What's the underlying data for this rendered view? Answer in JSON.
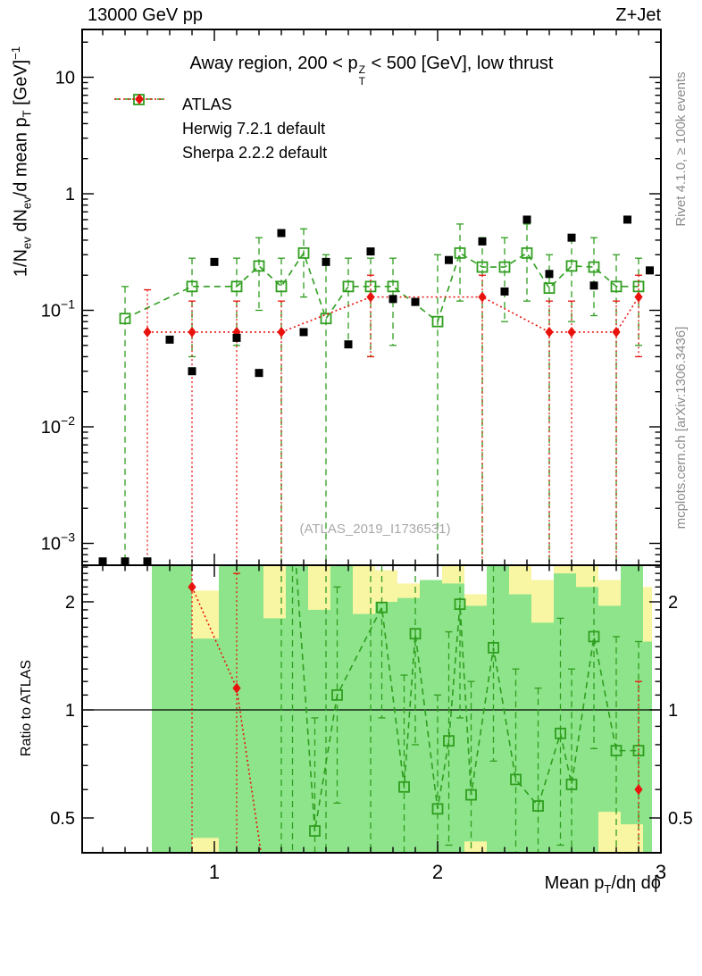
{
  "header": {
    "beam": "13000 GeV pp",
    "process": "Z+Jet"
  },
  "title": {
    "pre": "Away region, 200 < p",
    "sup": "Z",
    "sub": "T",
    "post": " < 500 [GeV], low thrust"
  },
  "legend": [
    {
      "label": "ATLAS",
      "marker": "filled-square",
      "color": "#000000",
      "line": "none"
    },
    {
      "label": "Herwig 7.2.1 default",
      "marker": "open-square",
      "color": "#2f9e1f",
      "line": "dashed"
    },
    {
      "label": "Sherpa 2.2.2 default",
      "marker": "filled-diamond",
      "color": "#e8130d",
      "line": "dotted"
    }
  ],
  "labels": {
    "y_main": {
      "a": "1/N",
      "b": "ev",
      "c": " dN",
      "d": "ev",
      "e": "/d mean p",
      "f": "T",
      "g": " [GeV]",
      "h": "−1"
    },
    "y_ratio": "Ratio to ATLAS",
    "x": {
      "a": "Mean p",
      "b": "T",
      "c": "/dη dϕ"
    }
  },
  "side_notes": {
    "top_right": "Rivet 4.1.0, ≥ 100k events",
    "bottom_right": "mcplots.cern.ch [arXiv:1306.3436]"
  },
  "watermark": "(ATLAS_2019_I1736531)",
  "colors": {
    "atlas": "#000000",
    "herwig": "#2f9e1f",
    "sherpa": "#e8130d",
    "band_yellow": "#f9f6a3",
    "band_green": "#8ee48a",
    "frame": "#000000",
    "note_gray": "#8c8c8c",
    "watermark_gray": "#a9a9a9"
  },
  "chart_data": [
    {
      "type": "scatter",
      "title": "Away region, 200 < pT(Z) < 500 [GeV], low thrust",
      "xlabel": "Mean pT/dη dϕ",
      "ylabel": "1/Nev dNev/d mean pT [GeV]^-1",
      "x_range": [
        0.41,
        3.0
      ],
      "y_range": [
        0.00065,
        26
      ],
      "y_scale": "log",
      "grid": false,
      "legend_position": "top-left",
      "x_ticks": [
        {
          "v": 1,
          "t": "1"
        },
        {
          "v": 2,
          "t": "2"
        },
        {
          "v": 3,
          "t": "3"
        }
      ],
      "y_ticks": [
        {
          "v": 10,
          "b": "10",
          "e": ""
        },
        {
          "v": 1,
          "b": "1",
          "e": ""
        },
        {
          "v": 0.1,
          "b": "10",
          "e": "−1"
        },
        {
          "v": 0.01,
          "b": "10",
          "e": "−2"
        },
        {
          "v": 0.001,
          "b": "10",
          "e": "−3"
        }
      ],
      "series": [
        {
          "name": "Herwig 7.2.1 default",
          "marker": "open-square",
          "line": "dashed",
          "color": "#2f9e1f",
          "points": [
            [
              0.6,
              0.085,
              null,
              0.16
            ],
            [
              0.9,
              0.16,
              0.04,
              0.28
            ],
            [
              1.1,
              0.16,
              0.05,
              0.28
            ],
            [
              1.2,
              0.24,
              0.1,
              0.42
            ],
            [
              1.3,
              0.16,
              null,
              0.28
            ],
            [
              1.4,
              0.31,
              0.13,
              0.5
            ],
            [
              1.5,
              0.085,
              null,
              0.3
            ],
            [
              1.6,
              0.16,
              0.05,
              0.28
            ],
            [
              1.7,
              0.16,
              0.04,
              0.28
            ],
            [
              1.8,
              0.16,
              0.05,
              0.28
            ],
            [
              2.0,
              0.08,
              null,
              0.3
            ],
            [
              2.1,
              0.31,
              0.12,
              0.55
            ],
            [
              2.2,
              0.235,
              null,
              0.42
            ],
            [
              2.3,
              0.235,
              0.08,
              0.42
            ],
            [
              2.4,
              0.31,
              0.12,
              0.55
            ],
            [
              2.5,
              0.155,
              null,
              0.3
            ],
            [
              2.6,
              0.24,
              0.08,
              0.42
            ],
            [
              2.7,
              0.235,
              0.09,
              0.42
            ],
            [
              2.8,
              0.16,
              null,
              0.3
            ],
            [
              2.9,
              0.16,
              0.05,
              0.28
            ]
          ]
        },
        {
          "name": "Sherpa 2.2.2 default",
          "marker": "filled-diamond",
          "line": "dotted",
          "color": "#e8130d",
          "points": [
            [
              0.7,
              0.065,
              null,
              0.15
            ],
            [
              0.9,
              0.065,
              null,
              0.12
            ],
            [
              1.1,
              0.065,
              null,
              0.12
            ],
            [
              1.3,
              0.065,
              null,
              0.12
            ],
            [
              1.7,
              0.13,
              0.04,
              0.2
            ],
            [
              2.2,
              0.13,
              null,
              0.2
            ],
            [
              2.5,
              0.065,
              null,
              0.12
            ],
            [
              2.6,
              0.065,
              null,
              0.12
            ],
            [
              2.8,
              0.065,
              null,
              0.12
            ],
            [
              2.9,
              0.13,
              0.04,
              0.2
            ]
          ]
        },
        {
          "name": "ATLAS",
          "marker": "filled-square",
          "line": "none",
          "color": "#000000",
          "points": [
            [
              0.5,
              0.0007
            ],
            [
              0.6,
              0.0007
            ],
            [
              0.7,
              0.0007
            ],
            [
              0.8,
              0.056
            ],
            [
              0.9,
              0.03
            ],
            [
              1.0,
              0.26
            ],
            [
              1.1,
              0.058
            ],
            [
              1.2,
              0.029
            ],
            [
              1.3,
              0.46
            ],
            [
              1.4,
              0.065
            ],
            [
              1.5,
              0.26
            ],
            [
              1.6,
              0.051
            ],
            [
              1.7,
              0.32
            ],
            [
              1.8,
              0.125
            ],
            [
              1.9,
              0.118
            ],
            [
              2.05,
              0.27
            ],
            [
              2.2,
              0.39
            ],
            [
              2.3,
              0.145
            ],
            [
              2.4,
              0.6
            ],
            [
              2.5,
              0.205
            ],
            [
              2.6,
              0.42
            ],
            [
              2.7,
              0.163
            ],
            [
              2.85,
              0.6
            ],
            [
              2.95,
              0.22
            ]
          ]
        }
      ]
    },
    {
      "type": "scatter",
      "title": "Ratio to ATLAS",
      "y_scale": "log",
      "x_range": [
        0.41,
        3.0
      ],
      "y_range": [
        0.4,
        2.53
      ],
      "reference_line": 1,
      "y_ticks": [
        {
          "v": 2,
          "t": "2"
        },
        {
          "v": 1,
          "t": "1"
        },
        {
          "v": 0.5,
          "t": "0.5"
        }
      ],
      "bands": [
        {
          "x0": 0.72,
          "x1": 0.9,
          "y": [
            0.39,
            2.6
          ],
          "g": [
            0.39,
            2.6
          ]
        },
        {
          "x0": 0.9,
          "x1": 1.02,
          "y": [
            0.39,
            2.15
          ],
          "g": [
            0.44,
            1.58
          ]
        },
        {
          "x0": 1.02,
          "x1": 1.22,
          "y": [
            0.39,
            2.6
          ],
          "g": [
            0.39,
            2.6
          ]
        },
        {
          "x0": 1.22,
          "x1": 1.32,
          "y": [
            0.39,
            2.6
          ],
          "g": [
            0.39,
            1.8
          ]
        },
        {
          "x0": 1.32,
          "x1": 1.42,
          "y": [
            0.39,
            2.6
          ],
          "g": [
            0.39,
            2.6
          ]
        },
        {
          "x0": 1.42,
          "x1": 1.52,
          "y": [
            0.39,
            2.6
          ],
          "g": [
            0.39,
            1.9
          ]
        },
        {
          "x0": 1.52,
          "x1": 1.62,
          "y": [
            0.39,
            2.6
          ],
          "g": [
            0.39,
            2.6
          ]
        },
        {
          "x0": 1.62,
          "x1": 1.72,
          "y": [
            0.39,
            2.6
          ],
          "g": [
            0.39,
            1.85
          ]
        },
        {
          "x0": 1.72,
          "x1": 1.82,
          "y": [
            0.39,
            2.45
          ],
          "g": [
            0.39,
            2.0
          ]
        },
        {
          "x0": 1.82,
          "x1": 1.92,
          "y": [
            0.39,
            2.25
          ],
          "g": [
            0.39,
            2.05
          ]
        },
        {
          "x0": 1.92,
          "x1": 2.02,
          "y": [
            0.39,
            2.3
          ],
          "g": [
            0.39,
            2.3
          ]
        },
        {
          "x0": 2.02,
          "x1": 2.12,
          "y": [
            0.39,
            2.6
          ],
          "g": [
            0.39,
            2.25
          ]
        },
        {
          "x0": 2.12,
          "x1": 2.22,
          "y": [
            0.39,
            2.1
          ],
          "g": [
            0.43,
            1.95
          ]
        },
        {
          "x0": 2.22,
          "x1": 2.32,
          "y": [
            0.39,
            2.6
          ],
          "g": [
            0.39,
            2.6
          ]
        },
        {
          "x0": 2.32,
          "x1": 2.42,
          "y": [
            0.39,
            2.6
          ],
          "g": [
            0.39,
            2.1
          ]
        },
        {
          "x0": 2.42,
          "x1": 2.52,
          "y": [
            0.39,
            2.3
          ],
          "g": [
            0.39,
            1.75
          ]
        },
        {
          "x0": 2.52,
          "x1": 2.62,
          "y": [
            0.39,
            2.6
          ],
          "g": [
            0.39,
            2.4
          ]
        },
        {
          "x0": 2.62,
          "x1": 2.72,
          "y": [
            0.39,
            2.6
          ],
          "g": [
            0.39,
            2.2
          ]
        },
        {
          "x0": 2.72,
          "x1": 2.82,
          "y": [
            0.39,
            2.3
          ],
          "g": [
            0.52,
            1.95
          ]
        },
        {
          "x0": 2.82,
          "x1": 2.92,
          "y": [
            0.39,
            2.6
          ],
          "g": [
            0.48,
            2.6
          ]
        },
        {
          "x0": 2.92,
          "x1": 2.96,
          "y": [
            0.39,
            2.2
          ],
          "g": [
            0.39,
            1.55
          ]
        }
      ],
      "series": [
        {
          "name": "Herwig 7.2.1 default / ATLAS",
          "marker": "open-square",
          "line": "dashed",
          "color": "#2f9e1f",
          "entry_tail": [
            1.35,
            3.5
          ],
          "offscale_bars": [
            1.3,
            1.35,
            1.5,
            1.7
          ],
          "points": [
            [
              1.45,
              0.46,
              null,
              0.95
            ],
            [
              1.55,
              1.1,
              0.55,
              2.2
            ],
            [
              1.75,
              1.93,
              0.95,
              null
            ],
            [
              1.85,
              0.61,
              null,
              1.25
            ],
            [
              1.9,
              1.63,
              0.8,
              null
            ],
            [
              2.0,
              0.53,
              null,
              1.1
            ],
            [
              2.05,
              0.82,
              0.42,
              1.65
            ],
            [
              2.1,
              1.97,
              0.95,
              null
            ],
            [
              2.15,
              0.58,
              null,
              1.2
            ],
            [
              2.25,
              1.49,
              0.72,
              null
            ],
            [
              2.35,
              0.64,
              null,
              1.3
            ],
            [
              2.45,
              0.54,
              null,
              1.15
            ],
            [
              2.55,
              0.86,
              0.42,
              1.8
            ],
            [
              2.6,
              0.62,
              null,
              1.3
            ],
            [
              2.7,
              1.6,
              0.78,
              null
            ],
            [
              2.8,
              0.77,
              null,
              1.6
            ],
            [
              2.9,
              0.77,
              0.4,
              1.55
            ]
          ]
        },
        {
          "name": "Sherpa 2.2.2 default / ATLAS",
          "marker": "filled-diamond",
          "line": "dotted",
          "color": "#e8130d",
          "exit_tail": [
            1.22,
            0.36
          ],
          "offscale_bars": [],
          "points": [
            [
              0.9,
              2.2,
              null,
              null
            ],
            [
              1.1,
              1.15,
              null,
              2.4
            ],
            [
              2.9,
              0.6,
              null,
              1.2
            ]
          ]
        }
      ]
    }
  ]
}
